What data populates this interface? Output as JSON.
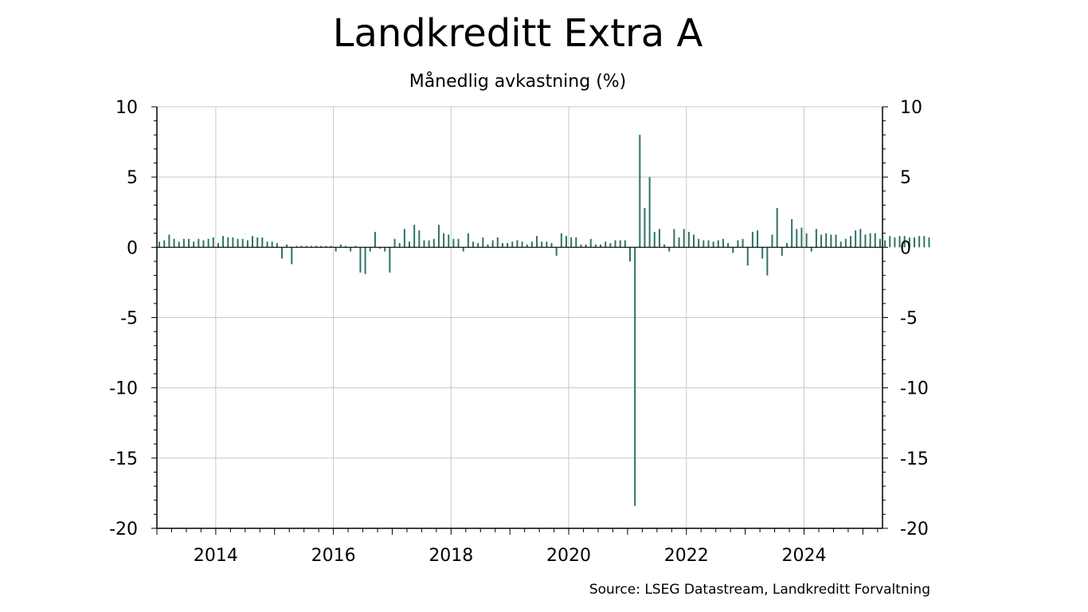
{
  "chart_data": {
    "type": "bar",
    "title": "Landkreditt Extra A",
    "subtitle": "Månedlig avkastning (%)",
    "source": "Source: LSEG Datastream, Landkreditt Forvaltning",
    "xlabel": "",
    "ylabel": "",
    "ylim": [
      -20,
      10
    ],
    "y_ticks": [
      "10",
      "5",
      "0",
      "-5",
      "-10",
      "-15",
      "-20"
    ],
    "x_ticks": [
      "2014",
      "2016",
      "2018",
      "2020",
      "2022",
      "2024"
    ],
    "x_start": "2013-01",
    "grid": true,
    "bar_color": "#2e7268",
    "series": [
      {
        "name": "Månedlig avkastning (%)",
        "values": [
          0.4,
          0.5,
          0.9,
          0.6,
          0.4,
          0.6,
          0.6,
          0.4,
          0.6,
          0.5,
          0.6,
          0.7,
          0.3,
          0.8,
          0.7,
          0.7,
          0.6,
          0.6,
          0.5,
          0.8,
          0.7,
          0.7,
          0.4,
          0.4,
          0.3,
          -0.8,
          0.2,
          -1.2,
          0.1,
          0.1,
          0.1,
          0.1,
          0.1,
          0.1,
          0.1,
          0.1,
          -0.3,
          0.2,
          0.1,
          -0.3,
          0.1,
          -1.8,
          -1.9,
          -0.3,
          1.1,
          -0.1,
          -0.3,
          -1.8,
          0.6,
          0.3,
          1.3,
          0.4,
          1.6,
          1.2,
          0.5,
          0.5,
          0.6,
          1.6,
          1.0,
          0.9,
          0.6,
          0.6,
          -0.3,
          1.0,
          0.4,
          0.3,
          0.7,
          0.2,
          0.5,
          0.7,
          0.3,
          0.3,
          0.4,
          0.5,
          0.4,
          0.2,
          0.4,
          0.8,
          0.4,
          0.4,
          0.3,
          -0.6,
          1.0,
          0.8,
          0.7,
          0.7,
          0.2,
          0.2,
          0.6,
          0.2,
          0.2,
          0.4,
          0.3,
          0.5,
          0.5,
          0.5,
          -1.0,
          -18.4,
          8.0,
          2.8,
          5.0,
          1.1,
          1.3,
          0.2,
          -0.3,
          1.3,
          0.7,
          1.3,
          1.1,
          0.9,
          0.6,
          0.5,
          0.5,
          0.4,
          0.5,
          0.6,
          0.3,
          -0.4,
          0.5,
          0.6,
          -1.3,
          1.1,
          1.2,
          -0.8,
          -2.0,
          0.9,
          2.8,
          -0.6,
          0.3,
          2.0,
          1.3,
          1.4,
          1.0,
          -0.3,
          1.3,
          0.9,
          1.0,
          0.9,
          0.9,
          0.4,
          0.6,
          0.8,
          1.2,
          1.3,
          0.9,
          1.0,
          1.0,
          0.6,
          0.5,
          0.8,
          0.7,
          0.8,
          0.8,
          0.7,
          0.7,
          0.8,
          0.8,
          0.7
        ]
      }
    ]
  }
}
